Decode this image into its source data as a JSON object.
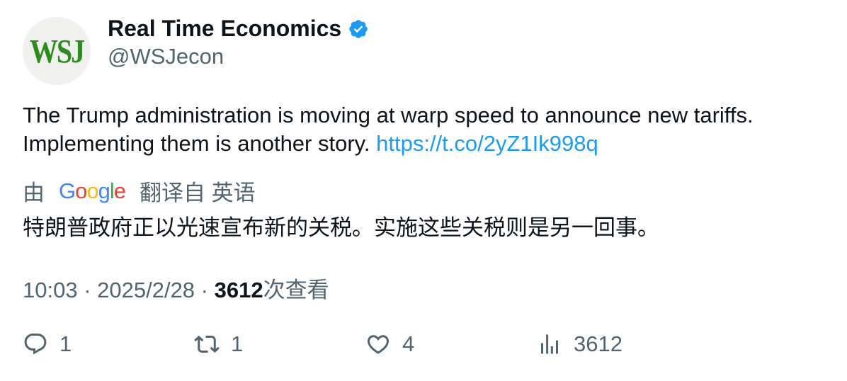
{
  "author": {
    "avatar_text": "WSJ",
    "display_name": "Real Time Economics",
    "handle": "@WSJecon",
    "verified_icon": "verified-badge-icon"
  },
  "tweet": {
    "text": "The Trump administration is moving at warp speed to announce new tariffs. Implementing them is another story.",
    "link": "https://t.co/2yZ1Ik998q"
  },
  "translation": {
    "by_label": "由",
    "provider": "Google",
    "from_label": "翻译自 英语",
    "text": "特朗普政府正以光速宣布新的关税。实施这些关税则是另一回事。"
  },
  "meta": {
    "time": "10:03",
    "date": "2025/2/28",
    "views_count": "3612",
    "views_label": "次查看"
  },
  "actions": {
    "reply": "1",
    "retweet": "1",
    "like": "4",
    "views": "3612"
  },
  "colors": {
    "text_primary": "#0f1419",
    "text_secondary": "#536471",
    "link": "#1d9bf0",
    "verified": "#1d9bf0"
  }
}
